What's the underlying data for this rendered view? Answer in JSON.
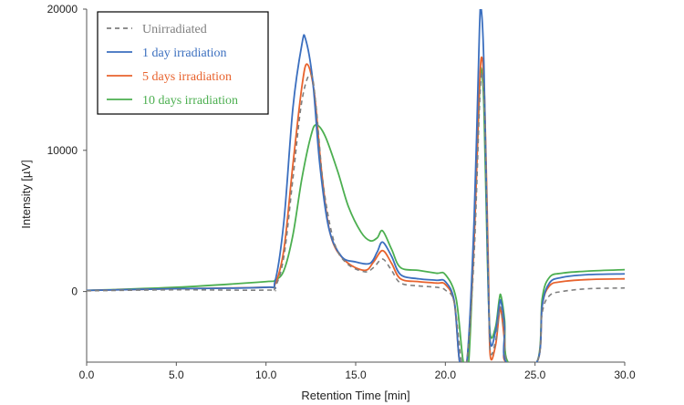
{
  "chart_data": {
    "type": "line",
    "title": "",
    "xlabel": "Retention Time [min]",
    "ylabel": "Intensity [µV]",
    "xlim": [
      0,
      30
    ],
    "ylim": [
      -5000,
      20000
    ],
    "x_ticks": [
      {
        "value": 0,
        "label": "0.0"
      },
      {
        "value": 5,
        "label": "5.0"
      },
      {
        "value": 10,
        "label": "10.0"
      },
      {
        "value": 15,
        "label": "15.0"
      },
      {
        "value": 20,
        "label": "20.0"
      },
      {
        "value": 25,
        "label": "25.0"
      },
      {
        "value": 30,
        "label": "30.0"
      }
    ],
    "y_ticks": [
      {
        "value": 0,
        "label": "0"
      },
      {
        "value": 10000,
        "label": "10000"
      },
      {
        "value": 20000,
        "label": "20000"
      }
    ],
    "grid": false,
    "legend_position": "top-left",
    "series": [
      {
        "name": "Unirradiated",
        "color": "#7f7f7f",
        "dashed": true,
        "points": [
          [
            0,
            50
          ],
          [
            5,
            120
          ],
          [
            10,
            100
          ],
          [
            10.5,
            300
          ],
          [
            11,
            2500
          ],
          [
            11.5,
            8000
          ],
          [
            12,
            13500
          ],
          [
            12.5,
            15400
          ],
          [
            12.8,
            13000
          ],
          [
            13.2,
            7500
          ],
          [
            13.8,
            3500
          ],
          [
            14.5,
            2000
          ],
          [
            15.5,
            1400
          ],
          [
            16,
            1700
          ],
          [
            16.5,
            2300
          ],
          [
            17,
            1500
          ],
          [
            17.5,
            600
          ],
          [
            18.5,
            400
          ],
          [
            19.5,
            300
          ],
          [
            20,
            100
          ],
          [
            20.5,
            -800
          ],
          [
            20.9,
            -5000
          ],
          [
            21.2,
            -5000
          ],
          [
            21.6,
            2500
          ],
          [
            21.9,
            13000
          ],
          [
            22.05,
            15500
          ],
          [
            22.2,
            12000
          ],
          [
            22.4,
            1000
          ],
          [
            22.5,
            -4200
          ],
          [
            22.8,
            -3500
          ],
          [
            23.0,
            -1500
          ],
          [
            23.1,
            -1200
          ],
          [
            23.3,
            -3000
          ],
          [
            23.5,
            -5000
          ],
          [
            25.1,
            -5000
          ],
          [
            25.4,
            -1500
          ],
          [
            25.8,
            -300
          ],
          [
            26.5,
            0
          ],
          [
            28,
            200
          ],
          [
            30,
            250
          ]
        ]
      },
      {
        "name": "1 day irradiation",
        "color": "#3b6fbf",
        "dashed": false,
        "points": [
          [
            0,
            80
          ],
          [
            5,
            200
          ],
          [
            10,
            300
          ],
          [
            10.5,
            700
          ],
          [
            11,
            5000
          ],
          [
            11.5,
            13000
          ],
          [
            12,
            17500
          ],
          [
            12.2,
            17900
          ],
          [
            12.6,
            15000
          ],
          [
            13,
            9000
          ],
          [
            13.5,
            4500
          ],
          [
            14.2,
            2500
          ],
          [
            15,
            2100
          ],
          [
            15.8,
            2000
          ],
          [
            16.2,
            2800
          ],
          [
            16.5,
            3500
          ],
          [
            17,
            2500
          ],
          [
            17.5,
            1200
          ],
          [
            18.5,
            900
          ],
          [
            19.5,
            800
          ],
          [
            20,
            700
          ],
          [
            20.5,
            -700
          ],
          [
            20.8,
            -5000
          ],
          [
            21.2,
            -5000
          ],
          [
            21.6,
            5000
          ],
          [
            21.9,
            18500
          ],
          [
            22.0,
            20000
          ],
          [
            22.15,
            16000
          ],
          [
            22.35,
            3000
          ],
          [
            22.5,
            -3500
          ],
          [
            22.8,
            -2800
          ],
          [
            23.0,
            -1000
          ],
          [
            23.1,
            -700
          ],
          [
            23.3,
            -2500
          ],
          [
            23.4,
            -5000
          ],
          [
            25.1,
            -5000
          ],
          [
            25.4,
            -1000
          ],
          [
            25.8,
            600
          ],
          [
            26.5,
            1000
          ],
          [
            28,
            1200
          ],
          [
            30,
            1250
          ]
        ]
      },
      {
        "name": "5 days irradiation",
        "color": "#e8632e",
        "dashed": false,
        "points": [
          [
            0,
            80
          ],
          [
            5,
            200
          ],
          [
            10,
            300
          ],
          [
            10.5,
            500
          ],
          [
            11,
            3000
          ],
          [
            11.5,
            9000
          ],
          [
            12,
            14500
          ],
          [
            12.3,
            16100
          ],
          [
            12.7,
            14000
          ],
          [
            13.1,
            8500
          ],
          [
            13.6,
            4000
          ],
          [
            14.4,
            2200
          ],
          [
            15.5,
            1500
          ],
          [
            16,
            2100
          ],
          [
            16.5,
            2900
          ],
          [
            17,
            2000
          ],
          [
            17.5,
            900
          ],
          [
            18.5,
            700
          ],
          [
            19.5,
            600
          ],
          [
            20,
            500
          ],
          [
            20.5,
            -800
          ],
          [
            20.8,
            -5000
          ],
          [
            21.2,
            -5000
          ],
          [
            21.6,
            3500
          ],
          [
            21.9,
            14500
          ],
          [
            22.05,
            16500
          ],
          [
            22.2,
            13000
          ],
          [
            22.4,
            1500
          ],
          [
            22.5,
            -4500
          ],
          [
            22.8,
            -3800
          ],
          [
            23.0,
            -1600
          ],
          [
            23.1,
            -1300
          ],
          [
            23.3,
            -3500
          ],
          [
            23.4,
            -5000
          ],
          [
            25.1,
            -5000
          ],
          [
            25.4,
            -1000
          ],
          [
            25.8,
            400
          ],
          [
            26.5,
            700
          ],
          [
            28,
            850
          ],
          [
            30,
            900
          ]
        ]
      },
      {
        "name": "10 days irradiation",
        "color": "#4caf50",
        "dashed": false,
        "points": [
          [
            0,
            80
          ],
          [
            5,
            300
          ],
          [
            10,
            700
          ],
          [
            10.5,
            800
          ],
          [
            11,
            1500
          ],
          [
            11.5,
            4000
          ],
          [
            12,
            8000
          ],
          [
            12.5,
            11000
          ],
          [
            12.8,
            11800
          ],
          [
            13.3,
            11000
          ],
          [
            14,
            8500
          ],
          [
            14.6,
            6000
          ],
          [
            15.3,
            4200
          ],
          [
            15.8,
            3600
          ],
          [
            16.2,
            3800
          ],
          [
            16.5,
            4300
          ],
          [
            17,
            3000
          ],
          [
            17.5,
            1700
          ],
          [
            18.5,
            1500
          ],
          [
            19.5,
            1300
          ],
          [
            20,
            1200
          ],
          [
            20.6,
            -500
          ],
          [
            21.0,
            -5000
          ],
          [
            21.3,
            -5000
          ],
          [
            21.6,
            4000
          ],
          [
            21.9,
            14000
          ],
          [
            22.0,
            15800
          ],
          [
            22.15,
            13000
          ],
          [
            22.35,
            2000
          ],
          [
            22.5,
            -3000
          ],
          [
            22.8,
            -2500
          ],
          [
            23.0,
            -600
          ],
          [
            23.1,
            -300
          ],
          [
            23.3,
            -2000
          ],
          [
            23.5,
            -5000
          ],
          [
            25.1,
            -5000
          ],
          [
            25.4,
            -500
          ],
          [
            25.8,
            1000
          ],
          [
            26.5,
            1300
          ],
          [
            28,
            1450
          ],
          [
            30,
            1550
          ]
        ]
      }
    ]
  }
}
